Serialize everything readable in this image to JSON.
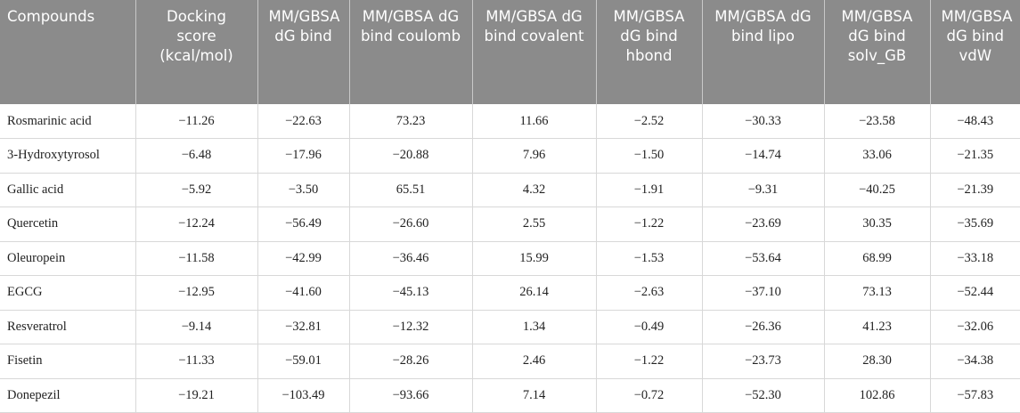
{
  "table": {
    "header": [
      "Compounds",
      "Docking score (kcal/mol)",
      "MM/GBSA dG bind",
      "MM/GBSA dG bind coulomb",
      "MM/GBSA dG bind covalent",
      "MM/GBSA dG bind hbond",
      "MM/GBSA dG bind lipo",
      "MM/GBSA dG bind solv_GB",
      "MM/GBSA dG bind vdW"
    ],
    "rows": [
      [
        "Rosmarinic acid",
        "−11.26",
        "−22.63",
        "73.23",
        "11.66",
        "−2.52",
        "−30.33",
        "−23.58",
        "−48.43"
      ],
      [
        "3-Hydroxytyrosol",
        "−6.48",
        "−17.96",
        "−20.88",
        "7.96",
        "−1.50",
        "−14.74",
        "33.06",
        "−21.35"
      ],
      [
        "Gallic acid",
        "−5.92",
        "−3.50",
        "65.51",
        "4.32",
        "−1.91",
        "−9.31",
        "−40.25",
        "−21.39"
      ],
      [
        "Quercetin",
        "−12.24",
        "−56.49",
        "−26.60",
        "2.55",
        "−1.22",
        "−23.69",
        "30.35",
        "−35.69"
      ],
      [
        "Oleuropein",
        "−11.58",
        "−42.99",
        "−36.46",
        "15.99",
        "−1.53",
        "−53.64",
        "68.99",
        "−33.18"
      ],
      [
        "EGCG",
        "−12.95",
        "−41.60",
        "−45.13",
        "26.14",
        "−2.63",
        "−37.10",
        "73.13",
        "−52.44"
      ],
      [
        "Resveratrol",
        "−9.14",
        "−32.81",
        "−12.32",
        "1.34",
        "−0.49",
        "−26.36",
        "41.23",
        "−32.06"
      ],
      [
        "Fisetin",
        "−11.33",
        "−59.01",
        "−28.26",
        "2.46",
        "−1.22",
        "−23.73",
        "28.30",
        "−34.38"
      ],
      [
        "Donepezil",
        "−19.21",
        "−103.49",
        "−93.66",
        "7.14",
        "−0.72",
        "−52.30",
        "102.86",
        "−57.83"
      ]
    ]
  }
}
